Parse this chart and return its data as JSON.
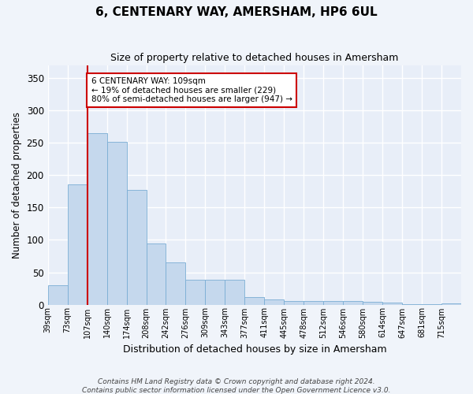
{
  "title": "6, CENTENARY WAY, AMERSHAM, HP6 6UL",
  "subtitle": "Size of property relative to detached houses in Amersham",
  "xlabel": "Distribution of detached houses by size in Amersham",
  "ylabel": "Number of detached properties",
  "bar_labels": [
    "39sqm",
    "73sqm",
    "107sqm",
    "140sqm",
    "174sqm",
    "208sqm",
    "242sqm",
    "276sqm",
    "309sqm",
    "343sqm",
    "377sqm",
    "411sqm",
    "445sqm",
    "478sqm",
    "512sqm",
    "546sqm",
    "580sqm",
    "614sqm",
    "647sqm",
    "681sqm",
    "715sqm"
  ],
  "bar_values": [
    30,
    186,
    265,
    252,
    177,
    95,
    65,
    38,
    38,
    38,
    11,
    8,
    5,
    6,
    5,
    5,
    4,
    3,
    1,
    1,
    2
  ],
  "bar_color": "#c5d8ed",
  "bar_edge_color": "#7aadd4",
  "vline_color": "#cc0000",
  "ylim": [
    0,
    370
  ],
  "yticks": [
    0,
    50,
    100,
    150,
    200,
    250,
    300,
    350
  ],
  "annotation_line1": "6 CENTENARY WAY: 109sqm",
  "annotation_line2": "← 19% of detached houses are smaller (229)",
  "annotation_line3": "80% of semi-detached houses are larger (947) →",
  "bg_color": "#f0f4fa",
  "plot_bg_color": "#e8eef8",
  "footer_line1": "Contains HM Land Registry data © Crown copyright and database right 2024.",
  "footer_line2": "Contains public sector information licensed under the Open Government Licence v3.0."
}
